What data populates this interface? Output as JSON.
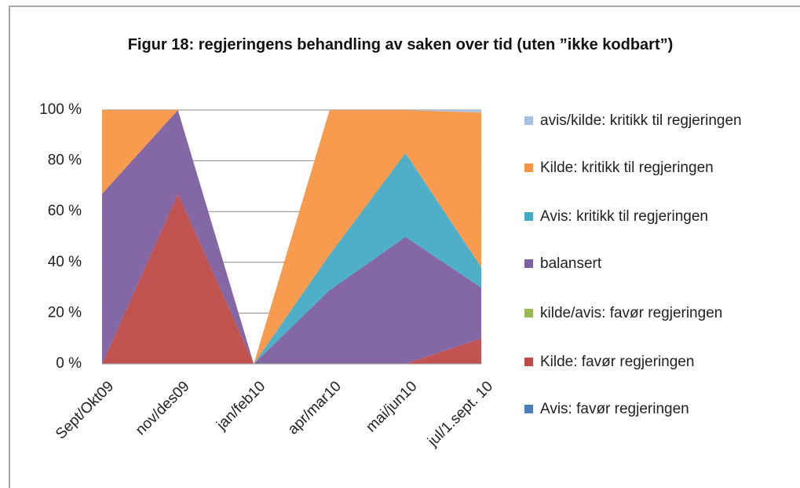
{
  "chart_data": {
    "type": "area",
    "title": "Figur 18: regjeringens behandling av saken over tid (uten ”ikke kodbart”)",
    "categories": [
      "Sept/Okt09",
      "nov/des09",
      "jan/feb10",
      "apr/mar10",
      "mai/jun10",
      "jul/1.sept. 10"
    ],
    "series": [
      {
        "name": "Avis: favør regjeringen",
        "color": "#4a7ebb",
        "values": [
          0,
          0,
          0,
          0,
          0,
          0
        ]
      },
      {
        "name": "Kilde: favør regjeringen",
        "color": "#be4b48",
        "values": [
          0,
          67,
          0,
          0,
          0,
          10
        ]
      },
      {
        "name": "kilde/avis: favør regjeringen",
        "color": "#98b954",
        "values": [
          0,
          0,
          0,
          0,
          0,
          0
        ]
      },
      {
        "name": "balansert",
        "color": "#7d60a0",
        "values": [
          67,
          33,
          0,
          29,
          50,
          20
        ]
      },
      {
        "name": "Avis: kritikk til regjeringen",
        "color": "#46aac5",
        "values": [
          0,
          0,
          0,
          14,
          33,
          8
        ]
      },
      {
        "name": "Kilde: kritikk til regjeringen",
        "color": "#f79646",
        "values": [
          33,
          0,
          0,
          57,
          17,
          61
        ]
      },
      {
        "name": "avis/kilde: kritikk til regjeringen",
        "color": "#a7c1e3",
        "values": [
          0,
          0,
          0,
          0,
          0,
          1
        ]
      }
    ],
    "ylim": [
      0,
      100
    ],
    "yticks": [
      {
        "value": 0,
        "label": "0 %"
      },
      {
        "value": 20,
        "label": "20 %"
      },
      {
        "value": 40,
        "label": "40 %"
      },
      {
        "value": 60,
        "label": "60 %"
      },
      {
        "value": 80,
        "label": "80 %"
      },
      {
        "value": 100,
        "label": "100 %"
      }
    ],
    "grid": true,
    "legend": "right"
  }
}
